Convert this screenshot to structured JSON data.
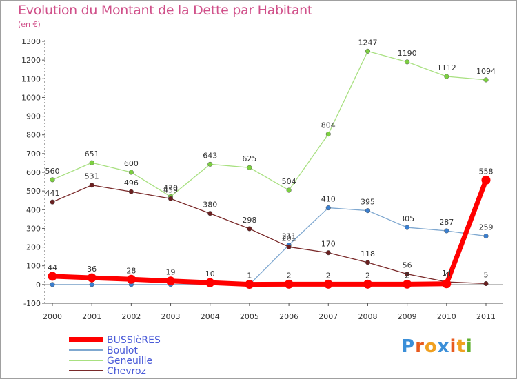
{
  "header": {
    "title": "Evolution du Montant de la Dette par Habitant",
    "subtitle": "(en €)"
  },
  "logo": {
    "letters": [
      "P",
      "r",
      "o",
      "x",
      "i",
      "t",
      "i"
    ],
    "colors": [
      "#3b8fd8",
      "#e85a1e",
      "#f0a020",
      "#3b8fd8",
      "#e85a1e",
      "#f0a020",
      "#60b030"
    ]
  },
  "chart_data": {
    "type": "line",
    "title": "Evolution du Montant de la Dette par Habitant",
    "subtitle": "(en €)",
    "x": [
      "2000",
      "2001",
      "2002",
      "2003",
      "2004",
      "2005",
      "2006",
      "2007",
      "2008",
      "2009",
      "2010",
      "2011"
    ],
    "yticks": [
      -100,
      0,
      100,
      200,
      300,
      400,
      500,
      600,
      700,
      800,
      900,
      1000,
      1100,
      1200,
      1300
    ],
    "ylim": [
      -100,
      1300
    ],
    "grid": false,
    "legend_position": "bottom-left",
    "series": [
      {
        "name": "BUSSIèRES",
        "color": "#ff0000",
        "marker_color": "#ff0000",
        "emphasis": true,
        "values": [
          44,
          36,
          28,
          19,
          10,
          1,
          2,
          2,
          2,
          2,
          4,
          558
        ],
        "labels": [
          "44",
          "36",
          "28",
          "19",
          "10",
          "1",
          "2",
          "2",
          "2",
          "2",
          "4",
          "558"
        ]
      },
      {
        "name": "Boulot",
        "color": "#7fa8d0",
        "marker_color": "#3a7fd0",
        "emphasis": false,
        "values": [
          0,
          0,
          0,
          0,
          0,
          0,
          211,
          410,
          395,
          305,
          287,
          259
        ],
        "labels": [
          "",
          "",
          "",
          "",
          "",
          "",
          "211",
          "410",
          "395",
          "305",
          "287",
          "259"
        ]
      },
      {
        "name": "Geneuille",
        "color": "#a8e080",
        "marker_color": "#7cd040",
        "emphasis": false,
        "values": [
          560,
          651,
          600,
          470,
          643,
          625,
          504,
          804,
          1247,
          1190,
          1112,
          1094
        ],
        "labels": [
          "560",
          "651",
          "600",
          "470",
          "643",
          "625",
          "504",
          "804",
          "1247",
          "1190",
          "1112",
          "1094"
        ]
      },
      {
        "name": "Chevroz",
        "color": "#7a2a2a",
        "marker_color": "#6a2020",
        "emphasis": false,
        "values": [
          441,
          531,
          496,
          459,
          380,
          298,
          201,
          170,
          118,
          56,
          14,
          5
        ],
        "labels": [
          "441",
          "531",
          "496",
          "459",
          "380",
          "298",
          "201",
          "170",
          "118",
          "56",
          "14",
          "5"
        ]
      }
    ]
  }
}
